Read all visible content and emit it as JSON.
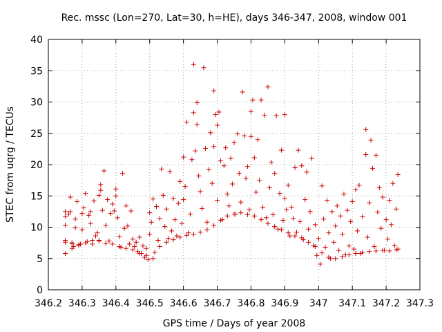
{
  "chart_data": {
    "type": "scatter",
    "title": "Rec. mssc (Lon=270, Lat=30, h=HE), days 346-347, 2008, window 001",
    "xlabel": "GPS time / Days of year 2008",
    "ylabel": "STEC from uqrg / TECUs",
    "xlim": [
      346.2,
      347.3
    ],
    "ylim": [
      0,
      40
    ],
    "xticks": [
      346.2,
      346.3,
      346.4,
      346.5,
      346.6,
      346.7,
      346.8,
      346.9,
      347.0,
      347.1,
      347.2,
      347.3
    ],
    "xtick_labels": [
      "346.2",
      "346.3",
      "346.4",
      "346.5",
      "346.6",
      "346.7",
      "346.8",
      "346.9",
      "347",
      "347.1",
      "347.2",
      "347.3"
    ],
    "yticks": [
      0,
      5,
      10,
      15,
      20,
      25,
      30,
      35,
      40
    ],
    "ytick_labels": [
      "0",
      "5",
      "10",
      "15",
      "20",
      "25",
      "30",
      "35",
      "40"
    ],
    "grid": true,
    "marker": "plus",
    "color": "#cc0000",
    "series": [
      {
        "points": [
          [
            346.25,
            5.8
          ],
          [
            346.25,
            7.9
          ],
          [
            346.25,
            10.3
          ],
          [
            346.25,
            11.7
          ],
          [
            346.25,
            12.5
          ],
          [
            346.26,
            12.1
          ],
          [
            346.265,
            14.8
          ],
          [
            346.265,
            12.5
          ],
          [
            346.27,
            6.6
          ],
          [
            346.27,
            7.5
          ],
          [
            346.275,
            6.9
          ],
          [
            346.28,
            11.3
          ],
          [
            346.28,
            9.9
          ],
          [
            346.285,
            14.1
          ],
          [
            346.29,
            7.2
          ],
          [
            346.295,
            7.3
          ],
          [
            346.3,
            9.6
          ],
          [
            346.3,
            12.2
          ],
          [
            346.305,
            13.1
          ],
          [
            346.31,
            15.4
          ],
          [
            346.315,
            7.7
          ],
          [
            346.32,
            11.9
          ],
          [
            346.325,
            12.5
          ],
          [
            346.325,
            10.6
          ],
          [
            346.33,
            7.3
          ],
          [
            346.335,
            14.2
          ],
          [
            346.34,
            8.6
          ],
          [
            346.345,
            9.1
          ],
          [
            346.35,
            15.1
          ],
          [
            346.35,
            7.9
          ],
          [
            346.355,
            15.9
          ],
          [
            346.355,
            16.8
          ],
          [
            346.36,
            12.7
          ],
          [
            346.365,
            19.0
          ],
          [
            346.37,
            10.3
          ],
          [
            346.375,
            14.4
          ],
          [
            346.38,
            7.8
          ],
          [
            346.385,
            12.2
          ],
          [
            346.39,
            13.7
          ],
          [
            346.395,
            12.6
          ],
          [
            346.4,
            16.1
          ],
          [
            346.4,
            15.0
          ],
          [
            346.405,
            11.5
          ],
          [
            346.41,
            8.5
          ],
          [
            346.415,
            6.8
          ],
          [
            346.42,
            18.6
          ],
          [
            346.425,
            9.8
          ],
          [
            346.43,
            13.4
          ],
          [
            346.435,
            10.2
          ],
          [
            346.44,
            7.3
          ],
          [
            346.445,
            12.6
          ],
          [
            346.45,
            8.1
          ],
          [
            346.455,
            6.9
          ],
          [
            346.46,
            7.6
          ],
          [
            346.465,
            6.1
          ],
          [
            346.47,
            8.4
          ],
          [
            346.475,
            5.8
          ],
          [
            346.48,
            7.0
          ],
          [
            346.485,
            5.2
          ],
          [
            346.49,
            6.6
          ],
          [
            346.495,
            4.8
          ],
          [
            346.5,
            8.9
          ],
          [
            346.5,
            12.3
          ],
          [
            346.505,
            10.8
          ],
          [
            346.51,
            14.5
          ],
          [
            346.515,
            6.0
          ],
          [
            346.52,
            13.3
          ],
          [
            346.525,
            7.9
          ],
          [
            346.53,
            11.4
          ],
          [
            346.535,
            19.3
          ],
          [
            346.54,
            15.1
          ],
          [
            346.545,
            10.1
          ],
          [
            346.55,
            12.9
          ],
          [
            346.555,
            8.2
          ],
          [
            346.56,
            18.9
          ],
          [
            346.565,
            9.4
          ],
          [
            346.57,
            14.6
          ],
          [
            346.575,
            11.2
          ],
          [
            346.58,
            8.6
          ],
          [
            346.585,
            13.8
          ],
          [
            346.59,
            17.3
          ],
          [
            346.595,
            10.6
          ],
          [
            346.6,
            21.2
          ],
          [
            346.6,
            14.4
          ],
          [
            346.605,
            16.5
          ],
          [
            346.61,
            26.8
          ],
          [
            346.615,
            9.1
          ],
          [
            346.62,
            12.1
          ],
          [
            346.625,
            20.8
          ],
          [
            346.63,
            28.3
          ],
          [
            346.63,
            36.0
          ],
          [
            346.635,
            22.2
          ],
          [
            346.64,
            29.9
          ],
          [
            346.64,
            26.4
          ],
          [
            346.645,
            18.2
          ],
          [
            346.65,
            15.7
          ],
          [
            346.655,
            13.0
          ],
          [
            346.66,
            35.5
          ],
          [
            346.665,
            22.6
          ],
          [
            346.67,
            10.8
          ],
          [
            346.675,
            19.2
          ],
          [
            346.68,
            25.1
          ],
          [
            346.685,
            17.0
          ],
          [
            346.69,
            31.8
          ],
          [
            346.69,
            22.9
          ],
          [
            346.695,
            28.0
          ],
          [
            346.7,
            14.3
          ],
          [
            346.7,
            26.3
          ],
          [
            346.705,
            28.4
          ],
          [
            346.71,
            20.6
          ],
          [
            346.715,
            11.2
          ],
          [
            346.72,
            19.8
          ],
          [
            346.725,
            22.7
          ],
          [
            346.73,
            15.3
          ],
          [
            346.735,
            13.4
          ],
          [
            346.74,
            21.0
          ],
          [
            346.745,
            16.9
          ],
          [
            346.75,
            23.5
          ],
          [
            346.755,
            12.1
          ],
          [
            346.76,
            24.9
          ],
          [
            346.765,
            18.6
          ],
          [
            346.77,
            14.0
          ],
          [
            346.775,
            31.6
          ],
          [
            346.78,
            24.6
          ],
          [
            346.785,
            17.8
          ],
          [
            346.79,
            19.7
          ],
          [
            346.795,
            12.8
          ],
          [
            346.8,
            24.5
          ],
          [
            346.8,
            28.5
          ],
          [
            346.805,
            30.3
          ],
          [
            346.81,
            21.1
          ],
          [
            346.815,
            15.6
          ],
          [
            346.82,
            24.0
          ],
          [
            346.825,
            17.5
          ],
          [
            346.83,
            30.3
          ],
          [
            346.835,
            13.2
          ],
          [
            346.84,
            27.9
          ],
          [
            346.845,
            11.5
          ],
          [
            346.85,
            32.4
          ],
          [
            346.855,
            16.3
          ],
          [
            346.86,
            20.4
          ],
          [
            346.865,
            12.0
          ],
          [
            346.87,
            18.6
          ],
          [
            346.875,
            27.8
          ],
          [
            346.88,
            9.7
          ],
          [
            346.885,
            15.4
          ],
          [
            346.89,
            22.3
          ],
          [
            346.895,
            11.1
          ],
          [
            346.9,
            14.6
          ],
          [
            346.9,
            28.0
          ],
          [
            346.905,
            12.8
          ],
          [
            346.91,
            16.7
          ],
          [
            346.915,
            8.6
          ],
          [
            346.92,
            13.2
          ],
          [
            346.925,
            11.4
          ],
          [
            346.93,
            19.5
          ],
          [
            346.935,
            9.2
          ],
          [
            346.94,
            22.3
          ],
          [
            346.945,
            10.9
          ],
          [
            346.95,
            19.8
          ],
          [
            346.955,
            8.0
          ],
          [
            346.96,
            14.4
          ],
          [
            346.965,
            18.8
          ],
          [
            346.97,
            9.7
          ],
          [
            346.975,
            12.5
          ],
          [
            346.98,
            21.0
          ],
          [
            346.985,
            7.1
          ],
          [
            346.99,
            10.4
          ],
          [
            346.995,
            5.5
          ],
          [
            347.0,
            8.2
          ],
          [
            347.005,
            4.1
          ],
          [
            347.01,
            16.6
          ],
          [
            347.015,
            11.3
          ],
          [
            347.02,
            6.8
          ],
          [
            347.025,
            14.3
          ],
          [
            347.03,
            9.1
          ],
          [
            347.035,
            5.0
          ],
          [
            347.04,
            12.5
          ],
          [
            347.045,
            7.6
          ],
          [
            347.05,
            10.2
          ],
          [
            347.055,
            13.4
          ],
          [
            347.06,
            6.3
          ],
          [
            347.065,
            11.8
          ],
          [
            347.07,
            8.9
          ],
          [
            347.075,
            15.3
          ],
          [
            347.08,
            5.6
          ],
          [
            347.085,
            12.7
          ],
          [
            347.09,
            7.0
          ],
          [
            347.095,
            10.9
          ],
          [
            347.1,
            14.1
          ],
          [
            347.105,
            6.5
          ],
          [
            347.11,
            16.0
          ],
          [
            347.115,
            9.4
          ],
          [
            347.12,
            16.7
          ],
          [
            347.125,
            5.8
          ],
          [
            347.13,
            11.7
          ],
          [
            347.14,
            25.6
          ],
          [
            347.14,
            21.6
          ],
          [
            347.145,
            8.4
          ],
          [
            347.15,
            13.9
          ],
          [
            347.155,
            23.9
          ],
          [
            347.16,
            19.4
          ],
          [
            347.165,
            6.9
          ],
          [
            347.17,
            21.5
          ],
          [
            347.175,
            12.4
          ],
          [
            347.18,
            16.3
          ],
          [
            347.185,
            9.8
          ],
          [
            347.19,
            14.8
          ],
          [
            347.195,
            6.3
          ],
          [
            347.2,
            11.2
          ],
          [
            347.205,
            8.1
          ],
          [
            347.21,
            14.3
          ],
          [
            347.215,
            10.4
          ],
          [
            347.22,
            17.0
          ],
          [
            347.225,
            7.1
          ],
          [
            347.23,
            12.9
          ],
          [
            347.235,
            18.4
          ],
          [
            347.235,
            6.5
          ],
          [
            346.25,
            7.6
          ],
          [
            346.27,
            7.4
          ],
          [
            346.29,
            7.1
          ],
          [
            346.31,
            7.5
          ],
          [
            346.33,
            7.9
          ],
          [
            346.35,
            7.8
          ],
          [
            346.37,
            7.4
          ],
          [
            346.39,
            7.3
          ],
          [
            346.41,
            6.9
          ],
          [
            346.43,
            6.6
          ],
          [
            346.45,
            6.4
          ],
          [
            346.47,
            5.8
          ],
          [
            346.49,
            5.5
          ],
          [
            346.51,
            5.0
          ],
          [
            346.53,
            6.9
          ],
          [
            346.55,
            7.6
          ],
          [
            346.57,
            8.0
          ],
          [
            346.59,
            8.4
          ],
          [
            346.61,
            8.7
          ],
          [
            346.63,
            8.9
          ],
          [
            346.65,
            9.2
          ],
          [
            346.67,
            9.6
          ],
          [
            346.69,
            10.3
          ],
          [
            346.71,
            11.1
          ],
          [
            346.73,
            11.8
          ],
          [
            346.75,
            12.1
          ],
          [
            346.77,
            12.3
          ],
          [
            346.79,
            12.0
          ],
          [
            346.81,
            11.8
          ],
          [
            346.83,
            11.2
          ],
          [
            346.85,
            10.6
          ],
          [
            346.87,
            10.1
          ],
          [
            346.89,
            9.6
          ],
          [
            346.91,
            9.1
          ],
          [
            346.93,
            8.6
          ],
          [
            346.95,
            8.3
          ],
          [
            346.97,
            7.6
          ],
          [
            346.99,
            6.9
          ],
          [
            347.01,
            5.9
          ],
          [
            347.03,
            5.2
          ],
          [
            347.05,
            5.0
          ],
          [
            347.07,
            5.3
          ],
          [
            347.09,
            5.6
          ],
          [
            347.11,
            5.8
          ],
          [
            347.13,
            6.0
          ],
          [
            347.15,
            6.1
          ],
          [
            347.17,
            6.2
          ],
          [
            347.19,
            6.3
          ],
          [
            347.21,
            6.2
          ],
          [
            347.23,
            6.4
          ]
        ]
      }
    ]
  }
}
